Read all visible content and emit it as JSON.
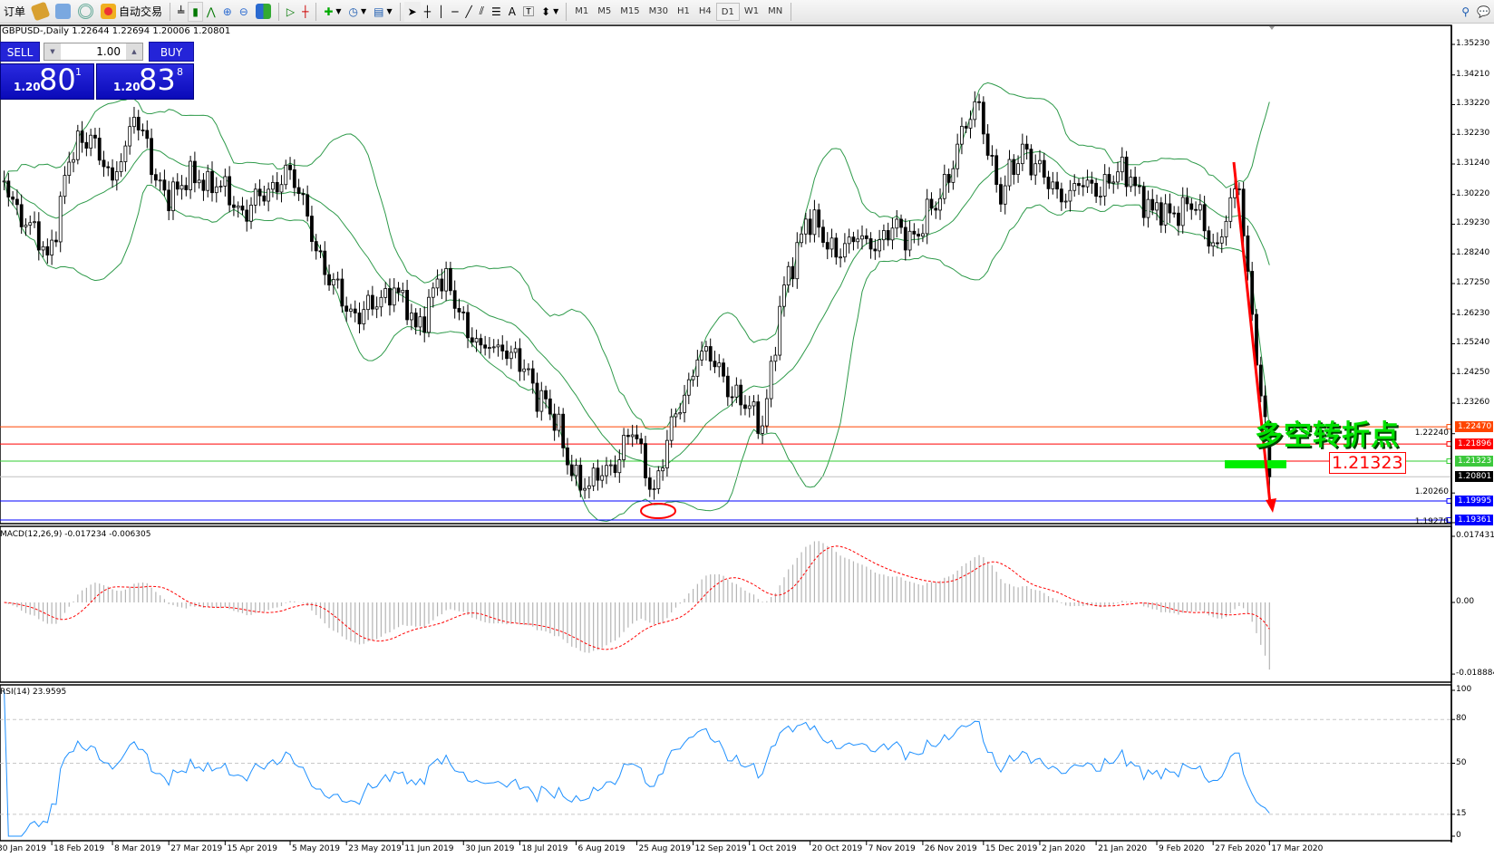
{
  "toolbar": {
    "items": [
      {
        "name": "new-order",
        "label": "订单",
        "icon": "order-icon"
      },
      {
        "name": "history",
        "label": "",
        "icon": "history-icon"
      },
      {
        "name": "market",
        "label": "",
        "icon": "market-icon"
      },
      {
        "name": "signals",
        "label": "",
        "icon": "signals-icon"
      },
      {
        "name": "auto-trading",
        "label": "自动交易",
        "icon": "auto-trading-icon"
      }
    ],
    "timeframes": [
      "M1",
      "M5",
      "M15",
      "M30",
      "H1",
      "H4",
      "D1",
      "W1",
      "MN"
    ],
    "active_timeframe": "D1",
    "text_tool": "A"
  },
  "chart": {
    "title": "GBPUSD-,Daily  1.22644 1.22694 1.20006 1.20801",
    "oneclick": {
      "sell_label": "SELL",
      "buy_label": "BUY",
      "lot": "1.00",
      "sell_prefix": "1.20",
      "sell_big": "80",
      "sell_sup": "1",
      "buy_prefix": "1.20",
      "buy_big": "83",
      "buy_sup": "8"
    },
    "annotation_text": "多空转折点",
    "annotation_price": "1.21323",
    "price_ticks": [
      "1.35230",
      "1.34210",
      "1.33220",
      "1.32230",
      "1.31240",
      "1.30220",
      "1.29230",
      "1.28240",
      "1.27250",
      "1.26230",
      "1.25240",
      "1.24250",
      "1.23260",
      "1.22240",
      "1.20260",
      "1.19270"
    ],
    "levels": [
      {
        "price": "1.22470",
        "color": "#ff4500"
      },
      {
        "price": "1.21896",
        "color": "#ff0000"
      },
      {
        "price": "1.21323",
        "color": "#32cd32"
      },
      {
        "price": "1.20801",
        "color": "#000000"
      },
      {
        "price": "1.19995",
        "color": "#0000ff"
      },
      {
        "price": "1.19361",
        "color": "#0000ff"
      }
    ],
    "macd": {
      "label": "MACD(12,26,9) -0.017234 -0.006305",
      "ticks": [
        "0.017431",
        "0.00",
        "-0.018884"
      ]
    },
    "rsi": {
      "label": "RSI(14) 23.9595",
      "ticks": [
        "100",
        "80",
        "50",
        "15",
        "0"
      ]
    },
    "date_ticks": [
      "30 Jan 2019",
      "18 Feb 2019",
      "8 Mar 2019",
      "27 Mar 2019",
      "15 Apr 2019",
      "5 May 2019",
      "23 May 2019",
      "11 Jun 2019",
      "30 Jun 2019",
      "18 Jul 2019",
      "6 Aug 2019",
      "25 Aug 2019",
      "12 Sep 2019",
      "1 Oct 2019",
      "20 Oct 2019",
      "7 Nov 2019",
      "26 Nov 2019",
      "15 Dec 2019",
      "2 Jan 2020",
      "21 Jan 2020",
      "9 Feb 2020",
      "27 Feb 2020",
      "17 Mar 2020"
    ]
  },
  "chart_data": {
    "type": "candlestick",
    "symbol": "GBPUSD-",
    "timeframe": "Daily",
    "last_bar": {
      "open": 1.22644,
      "high": 1.22694,
      "low": 1.20006,
      "close": 1.20801
    },
    "weekly_closes": [
      [
        "2019-02-01",
        1.3067
      ],
      [
        "2019-02-08",
        1.292
      ],
      [
        "2019-02-15",
        1.282
      ],
      [
        "2019-02-22",
        1.313
      ],
      [
        "2019-03-01",
        1.322
      ],
      [
        "2019-03-08",
        1.307
      ],
      [
        "2019-03-15",
        1.328
      ],
      [
        "2019-03-22",
        1.307
      ],
      [
        "2019-03-29",
        1.304
      ],
      [
        "2019-04-05",
        1.307
      ],
      [
        "2019-04-12",
        1.305
      ],
      [
        "2019-04-19",
        1.297
      ],
      [
        "2019-04-26",
        1.3
      ],
      [
        "2019-05-03",
        1.312
      ],
      [
        "2019-05-10",
        1.295
      ],
      [
        "2019-05-17",
        1.272
      ],
      [
        "2019-05-24",
        1.264
      ],
      [
        "2019-05-31",
        1.264
      ],
      [
        "2019-06-07",
        1.271
      ],
      [
        "2019-06-14",
        1.258
      ],
      [
        "2019-06-21",
        1.274
      ],
      [
        "2019-06-28",
        1.263
      ],
      [
        "2019-07-05",
        1.252
      ],
      [
        "2019-07-12",
        1.25
      ],
      [
        "2019-07-19",
        1.244
      ],
      [
        "2019-07-26",
        1.234
      ],
      [
        "2019-08-02",
        1.212
      ],
      [
        "2019-08-09",
        1.205
      ],
      [
        "2019-08-16",
        1.212
      ],
      [
        "2019-08-23",
        1.222
      ],
      [
        "2019-08-30",
        1.204
      ],
      [
        "2019-09-06",
        1.229
      ],
      [
        "2019-09-13",
        1.247
      ],
      [
        "2019-09-20",
        1.246
      ],
      [
        "2019-09-27",
        1.232
      ],
      [
        "2019-10-04",
        1.225
      ],
      [
        "2019-10-11",
        1.272
      ],
      [
        "2019-10-18",
        1.294
      ],
      [
        "2019-10-25",
        1.284
      ],
      [
        "2019-11-01",
        1.288
      ],
      [
        "2019-11-08",
        1.284
      ],
      [
        "2019-11-15",
        1.291
      ],
      [
        "2019-11-22",
        1.289
      ],
      [
        "2019-11-29",
        1.297
      ],
      [
        "2019-12-06",
        1.319
      ],
      [
        "2019-12-13",
        1.333
      ],
      [
        "2019-12-20",
        1.299
      ],
      [
        "2019-12-27",
        1.319
      ],
      [
        "2020-01-03",
        1.308
      ],
      [
        "2020-01-10",
        1.3
      ],
      [
        "2020-01-17",
        1.307
      ],
      [
        "2020-01-24",
        1.306
      ],
      [
        "2020-01-31",
        1.308
      ],
      [
        "2020-02-07",
        1.297
      ],
      [
        "2020-02-14",
        1.296
      ],
      [
        "2020-02-21",
        1.297
      ],
      [
        "2020-02-28",
        1.286
      ],
      [
        "2020-03-06",
        1.304
      ],
      [
        "2020-03-13",
        1.235
      ],
      [
        "2020-03-17",
        1.20801
      ]
    ],
    "indicators": [
      "Bollinger Bands(20,2)",
      "MACD(12,26,9)",
      "RSI(14)"
    ],
    "colors": {
      "bands": "#2e9a4a",
      "macd_hist": "#b4b4b4",
      "macd_signal": "#ff0000",
      "rsi": "#1e90ff",
      "trend_arrow": "#ff0000",
      "zone_bar": "#00ee00"
    }
  }
}
